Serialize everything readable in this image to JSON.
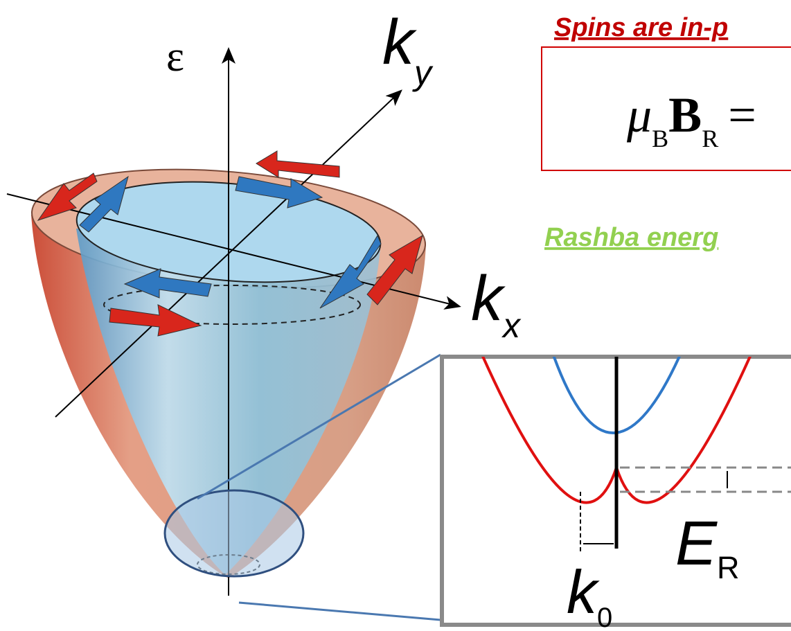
{
  "axes": {
    "energy": "ε",
    "ky": {
      "main": "k",
      "sub": "y"
    },
    "kx": {
      "main": "k",
      "sub": "x"
    }
  },
  "headings": [
    "Spins are in-p",
    "Rashba energ"
  ],
  "formula": {
    "mu": "μ",
    "mu_sub": "B",
    "field": "B",
    "field_sub": "R",
    "equals": "="
  },
  "inset": {
    "energy_label": {
      "main": "E",
      "sub": "R"
    },
    "k_label": {
      "main": "k",
      "sub": "0"
    }
  }
}
